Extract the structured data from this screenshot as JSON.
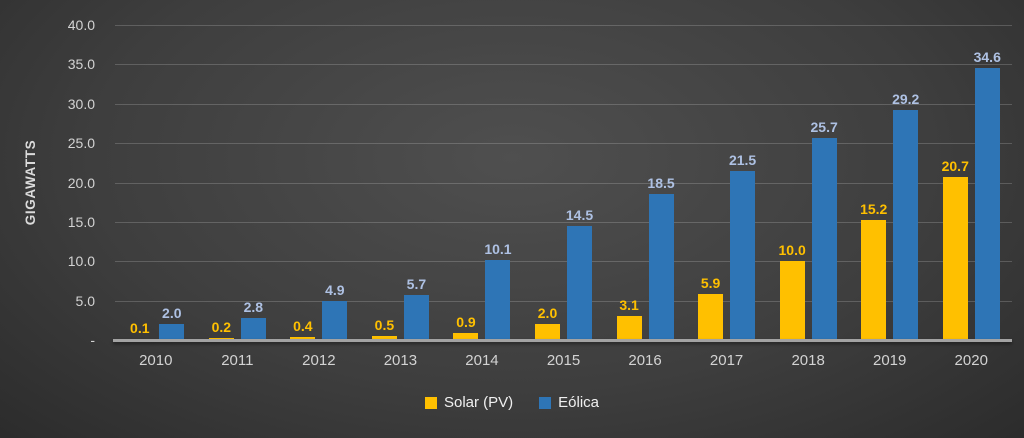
{
  "chart": {
    "y_ticks": [
      "40.0",
      "35.0",
      "30.0",
      "25.0",
      "20.0",
      "15.0",
      "10.0",
      "5.0",
      "-"
    ]
  },
  "chart_data": {
    "type": "bar",
    "title": "",
    "xlabel": "",
    "ylabel": "GIGAWATTS",
    "ylim": [
      0,
      40
    ],
    "y_tick_step": 5,
    "grid": true,
    "legend_position": "bottom",
    "categories": [
      "2010",
      "2011",
      "2012",
      "2013",
      "2014",
      "2015",
      "2016",
      "2017",
      "2018",
      "2019",
      "2020"
    ],
    "series": [
      {
        "name": "Solar (PV)",
        "color": "#FFC000",
        "label_color": "#FFC000",
        "values": [
          0.1,
          0.2,
          0.4,
          0.5,
          0.9,
          2.0,
          3.1,
          5.9,
          10.0,
          15.2,
          20.7
        ]
      },
      {
        "name": "Eólica",
        "color": "#2E75B6",
        "label_color": "#AEC1E3",
        "values": [
          2.0,
          2.8,
          4.9,
          5.7,
          10.1,
          14.5,
          18.5,
          21.5,
          25.7,
          29.2,
          34.6
        ]
      }
    ]
  }
}
